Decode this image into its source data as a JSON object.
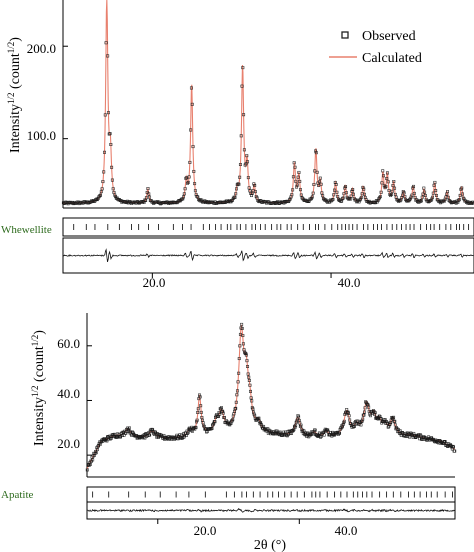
{
  "chart_data": [
    {
      "type": "line",
      "ylabel": "Intensity",
      "ylabel_sup": "1/2",
      "ylabel_unit_pre": " (count",
      "ylabel_unit_sup": "1/2",
      "ylabel_unit_post": ")",
      "xlim": [
        10,
        56
      ],
      "ylim": [
        25,
        250
      ],
      "x_ticks": [
        20,
        40
      ],
      "x_tick_labels": [
        "20.0",
        "40.0"
      ],
      "y_ticks": [
        100,
        200
      ],
      "y_tick_labels": [
        "100.0",
        "200.0"
      ],
      "legend": {
        "position": "top-right",
        "entries": [
          {
            "label": "Observed",
            "marker": "square",
            "color": "#222222"
          },
          {
            "label": "Calculated",
            "marker": "line",
            "color": "#e8806e"
          }
        ]
      },
      "phase_label": "Whewellite",
      "phase_color": "#2e6b1e",
      "background": 30,
      "peaks": [
        {
          "x": 14.9,
          "h": 222
        },
        {
          "x": 15.3,
          "h": 50
        },
        {
          "x": 19.5,
          "h": 15
        },
        {
          "x": 23.8,
          "h": 22
        },
        {
          "x": 24.4,
          "h": 128
        },
        {
          "x": 29.5,
          "h": 12
        },
        {
          "x": 30.1,
          "h": 147
        },
        {
          "x": 30.6,
          "h": 40
        },
        {
          "x": 31.4,
          "h": 18
        },
        {
          "x": 35.9,
          "h": 42
        },
        {
          "x": 36.4,
          "h": 30
        },
        {
          "x": 38.3,
          "h": 58
        },
        {
          "x": 38.8,
          "h": 22
        },
        {
          "x": 40.5,
          "h": 22
        },
        {
          "x": 41.6,
          "h": 18
        },
        {
          "x": 42.4,
          "h": 15
        },
        {
          "x": 43.6,
          "h": 18
        },
        {
          "x": 45.8,
          "h": 32
        },
        {
          "x": 46.3,
          "h": 30
        },
        {
          "x": 47.0,
          "h": 22
        },
        {
          "x": 48.1,
          "h": 12
        },
        {
          "x": 49.2,
          "h": 18
        },
        {
          "x": 50.4,
          "h": 15
        },
        {
          "x": 51.6,
          "h": 22
        },
        {
          "x": 53.0,
          "h": 12
        },
        {
          "x": 54.6,
          "h": 18
        }
      ]
    },
    {
      "type": "line",
      "xlabel": "2θ (°)",
      "ylabel": "Intensity",
      "ylabel_sup": "1/2",
      "ylabel_unit_pre": " (count",
      "ylabel_unit_sup": "1/2",
      "ylabel_unit_post": ")",
      "xlim": [
        10,
        62
      ],
      "ylim": [
        12,
        72
      ],
      "x_ticks": [
        20,
        40
      ],
      "x_tick_labels": [
        "20.0",
        "40.0"
      ],
      "y_ticks": [
        20,
        40,
        60
      ],
      "y_tick_labels": [
        "20.0",
        "40.0",
        "60.0"
      ],
      "phase_label": "Apatite",
      "phase_color": "#2e6b1e",
      "background": [
        [
          10,
          15
        ],
        [
          12,
          25
        ],
        [
          14,
          27
        ],
        [
          16,
          26.5
        ],
        [
          20,
          26
        ],
        [
          24,
          26
        ],
        [
          26,
          27
        ],
        [
          30,
          28
        ],
        [
          34,
          28
        ],
        [
          38,
          27
        ],
        [
          42,
          26
        ],
        [
          50,
          27
        ],
        [
          56,
          27
        ],
        [
          60,
          25
        ],
        [
          62,
          22
        ]
      ],
      "peaks": [
        {
          "x": 15.8,
          "h": 3,
          "w": 0.6
        },
        {
          "x": 19.2,
          "h": 2.5,
          "w": 0.7
        },
        {
          "x": 24.5,
          "h": 2.5,
          "w": 0.6
        },
        {
          "x": 25.9,
          "h": 14,
          "w": 0.35
        },
        {
          "x": 28.3,
          "h": 4,
          "w": 0.5
        },
        {
          "x": 29.0,
          "h": 7,
          "w": 0.5
        },
        {
          "x": 31.8,
          "h": 35,
          "w": 0.55
        },
        {
          "x": 32.5,
          "h": 16,
          "w": 0.45
        },
        {
          "x": 33.0,
          "h": 8,
          "w": 0.45
        },
        {
          "x": 34.2,
          "h": 3,
          "w": 0.5
        },
        {
          "x": 39.8,
          "h": 7,
          "w": 0.55
        },
        {
          "x": 42.1,
          "h": 2,
          "w": 0.5
        },
        {
          "x": 43.8,
          "h": 2,
          "w": 0.5
        },
        {
          "x": 46.7,
          "h": 9,
          "w": 0.6
        },
        {
          "x": 48.1,
          "h": 3,
          "w": 0.5
        },
        {
          "x": 49.5,
          "h": 11,
          "w": 0.6
        },
        {
          "x": 50.5,
          "h": 6,
          "w": 0.5
        },
        {
          "x": 51.3,
          "h": 4,
          "w": 0.5
        },
        {
          "x": 52.1,
          "h": 3,
          "w": 0.5
        },
        {
          "x": 53.2,
          "h": 6,
          "w": 0.5
        }
      ]
    }
  ]
}
